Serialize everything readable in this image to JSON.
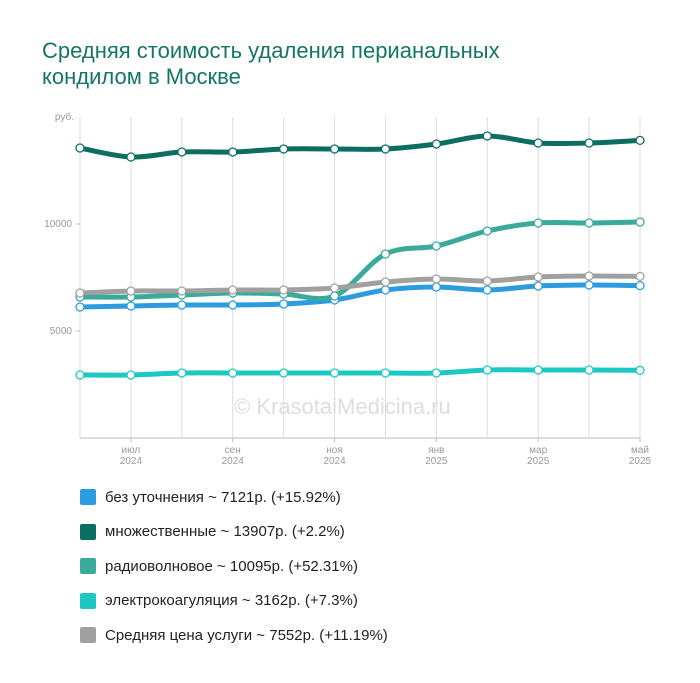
{
  "chart_data": {
    "type": "line",
    "title": "Средняя стоимость удаления перианальных кондилом в Москве",
    "y_label": "руб.",
    "watermark": "© KrasotaiMedicina.ru",
    "categories": [
      null,
      "июл 2024",
      null,
      "сен 2024",
      null,
      "ноя 2024",
      null,
      "янв 2025",
      null,
      "мар 2025",
      null,
      "май 2025"
    ],
    "ylim": [
      0,
      15000
    ],
    "yticks": [
      5000,
      10000
    ],
    "series": [
      {
        "name": "без уточнения ~ 7121р. (+15.92%)",
        "color": "#2d9be0",
        "values": [
          6121,
          6168,
          6215,
          6215,
          6262,
          6449,
          6916,
          7056,
          6916,
          7103,
          7150,
          7121
        ]
      },
      {
        "name": "множественные ~ 13907р. (+2.2%)",
        "color": "#0b6e61",
        "values": [
          13551,
          13131,
          13364,
          13364,
          13505,
          13505,
          13505,
          13738,
          14112,
          13785,
          13785,
          13907
        ]
      },
      {
        "name": "радиоволновое ~ 10095р. (+52.31%)",
        "color": "#3aaa9a",
        "values": [
          6589,
          6589,
          6682,
          6776,
          6729,
          6636,
          8598,
          8972,
          9673,
          10047,
          10047,
          10095
        ]
      },
      {
        "name": "электрокоагуляция ~ 3162р. (+7.3%)",
        "color": "#1cc8c4",
        "values": [
          2944,
          2944,
          3037,
          3037,
          3037,
          3037,
          3037,
          3037,
          3178,
          3178,
          3178,
          3162
        ]
      },
      {
        "name": "Средняя цена услуги ~ 7552р. (+11.19%)",
        "color": "#a0a0a0",
        "values": [
          6776,
          6869,
          6869,
          6916,
          6916,
          7009,
          7290,
          7430,
          7336,
          7523,
          7570,
          7552
        ]
      }
    ]
  }
}
